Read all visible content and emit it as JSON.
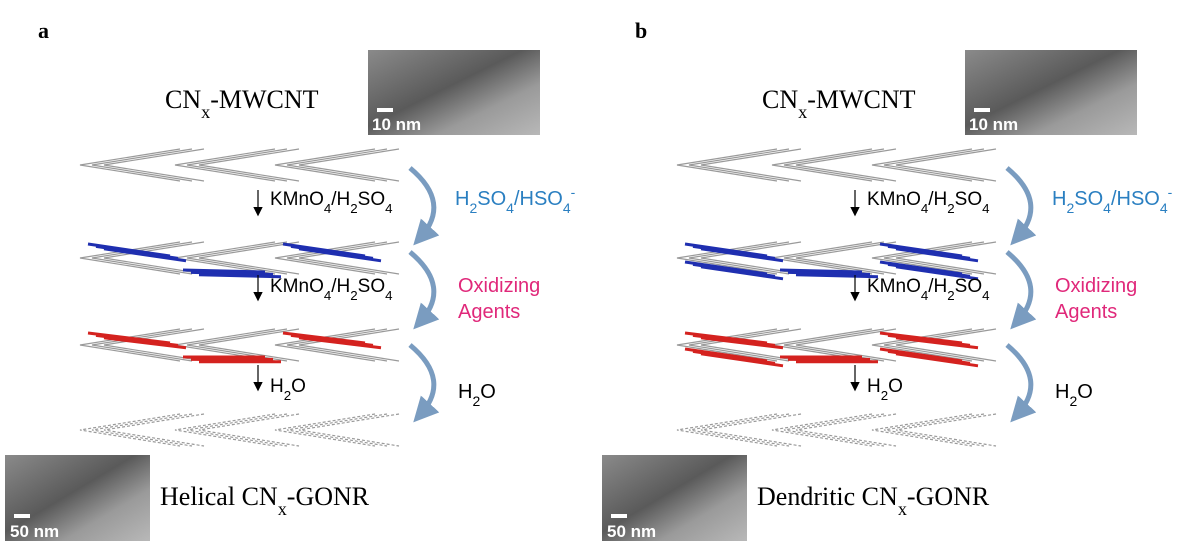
{
  "panels": [
    {
      "label": "a",
      "top_label": [
        "CN",
        "x",
        "-MWCNT"
      ],
      "top_scale": "10 nm",
      "steps": [
        [
          "KMnO",
          "4",
          "/H",
          "2",
          "SO",
          "4"
        ],
        [
          "KMnO",
          "4",
          "/H",
          "2",
          "SO",
          "4"
        ],
        [
          "H",
          "2",
          "O"
        ]
      ],
      "agent_1": {
        "parts": [
          "H",
          "2",
          "SO",
          "4",
          "/HSO",
          "4"
        ],
        "sup": "-"
      },
      "agent_2": [
        "Oxidizing",
        "Agents"
      ],
      "agent_3": [
        "H",
        "2",
        "O"
      ],
      "bottom_label": [
        "Helical CN",
        "x",
        "-GONR"
      ],
      "bottom_scale": "50 nm"
    },
    {
      "label": "b",
      "top_label": [
        "CN",
        "x",
        "-MWCNT"
      ],
      "top_scale": "10 nm",
      "steps": [
        [
          "KMnO",
          "4",
          "/H",
          "2",
          "SO",
          "4"
        ],
        [
          "KMnO",
          "4",
          "/H",
          "2",
          "SO",
          "4"
        ],
        [
          "H",
          "2",
          "O"
        ]
      ],
      "agent_1": {
        "parts": [
          "H",
          "2",
          "SO",
          "4",
          "/HSO",
          "4"
        ],
        "sup": "-"
      },
      "agent_2": [
        "Oxidizing",
        "Agents"
      ],
      "agent_3": [
        "H",
        "2",
        "O"
      ],
      "bottom_label": [
        "Dendritic CN",
        "x",
        "-GONR"
      ],
      "bottom_scale": "50 nm"
    }
  ]
}
